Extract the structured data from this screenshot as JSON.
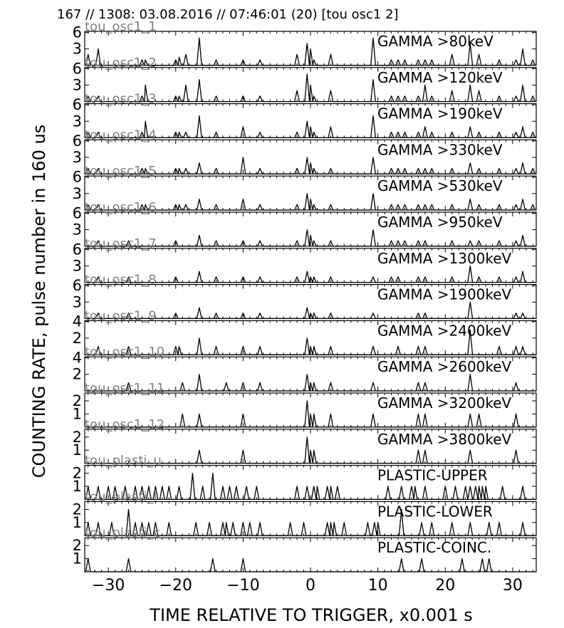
{
  "header": "167 // 1308:   03.08.2016 // 07:46:01 (20)  [tou osc1 2]",
  "chart_data": {
    "type": "line",
    "xlabel": "TIME RELATIVE TO TRIGGER,   x0.001 s",
    "ylabel": "COUNTING RATE,    pulse number in 160 us",
    "xlim": [
      -33.5,
      33.5
    ],
    "xticks": [
      -30,
      -20,
      -10,
      0,
      10,
      20,
      30
    ],
    "xtick_labels": [
      "−30",
      "−20",
      "−10",
      "0",
      "10",
      "20",
      "30"
    ],
    "line_color": "#000000",
    "tag_color": "#808080",
    "panels": [
      {
        "tag": "tou_osc1_1",
        "label": "GAMMA >80keV",
        "ylim": [
          0,
          6.2
        ],
        "yticks": [
          3,
          6
        ],
        "x": [
          -33,
          -31.5,
          -25,
          -24.5,
          -20,
          -19.5,
          -18.5,
          -16.5,
          -14,
          -10,
          -7.5,
          -2,
          -0.5,
          0,
          0.5,
          3,
          9.3,
          12,
          13,
          14,
          16,
          17,
          18,
          21,
          23.7,
          25,
          28,
          30.5,
          31.5,
          33
        ],
        "y": [
          2,
          3,
          1,
          1,
          1,
          1.5,
          2,
          5,
          1,
          1,
          1,
          2,
          4,
          3,
          1,
          2,
          5,
          1,
          1,
          1,
          1,
          1,
          1,
          2,
          4,
          2,
          1,
          1,
          3,
          1
        ]
      },
      {
        "tag": "tou_osc1_2",
        "label": "GAMMA >120keV",
        "ylim": [
          0,
          6.2
        ],
        "yticks": [
          3,
          6
        ],
        "x": [
          -33,
          -31.5,
          -25,
          -24.5,
          -20,
          -19.5,
          -18.5,
          -16.5,
          -14,
          -10,
          -7.5,
          -2,
          -0.5,
          0,
          0.5,
          3,
          9.3,
          12,
          13,
          14,
          16,
          17,
          18,
          21,
          23.7,
          25,
          28,
          30.5,
          31.5,
          33
        ],
        "y": [
          1,
          1,
          1,
          3,
          1,
          1,
          3,
          4,
          1,
          1,
          1,
          2,
          5,
          3,
          1,
          2,
          4,
          1,
          1,
          1,
          1,
          3,
          1,
          2,
          3,
          2,
          1,
          1,
          3,
          1
        ]
      },
      {
        "tag": "tou_osc1_3",
        "label": "GAMMA >190keV",
        "ylim": [
          0,
          6.2
        ],
        "yticks": [
          3,
          6
        ],
        "x": [
          -33,
          -31.5,
          -25,
          -24.5,
          -20,
          -19.5,
          -18.5,
          -16.5,
          -14,
          -10,
          -7.5,
          -2,
          -0.5,
          0,
          0.5,
          3,
          9.3,
          12,
          13,
          14,
          16,
          17,
          18,
          21,
          23.7,
          25,
          28,
          30.5,
          31.5,
          33
        ],
        "y": [
          1,
          1,
          1,
          3,
          1,
          1,
          1,
          4,
          1,
          2,
          1,
          1,
          3,
          2,
          1,
          2,
          4,
          1,
          1,
          1,
          1,
          2,
          1,
          1,
          2,
          1,
          1,
          1,
          2,
          1
        ]
      },
      {
        "tag": "tou_osc1_4",
        "label": "GAMMA >330keV",
        "ylim": [
          0,
          6.2
        ],
        "yticks": [
          3,
          6
        ],
        "x": [
          -33,
          -31.5,
          -25,
          -24.5,
          -20,
          -19.5,
          -18.5,
          -16.5,
          -14,
          -10,
          -7.5,
          -2,
          -0.5,
          0,
          0.5,
          3,
          9.3,
          12,
          13,
          14,
          16,
          17,
          18,
          21,
          23.7,
          25,
          28,
          30.5,
          31.5,
          33
        ],
        "y": [
          1,
          1,
          1,
          1,
          1,
          1,
          1,
          2,
          1,
          3,
          1,
          1,
          3,
          2,
          1,
          1,
          3,
          1,
          1,
          1,
          1,
          1,
          1,
          1,
          2,
          1,
          1,
          1,
          2,
          1
        ]
      },
      {
        "tag": "tou_osc1_5",
        "label": "GAMMA >530keV",
        "ylim": [
          0,
          6.2
        ],
        "yticks": [
          3,
          6
        ],
        "x": [
          -33,
          -31.5,
          -25,
          -24.5,
          -20,
          -19.5,
          -18.5,
          -16.5,
          -14,
          -10,
          -7.5,
          -2,
          -0.5,
          0,
          0.5,
          3,
          9.3,
          12,
          13,
          14,
          16,
          17,
          18,
          21,
          23.7,
          25,
          28,
          30.5,
          31.5,
          33
        ],
        "y": [
          1,
          1,
          1,
          1,
          1,
          1,
          1,
          2,
          1,
          2,
          1,
          1,
          3,
          2,
          1,
          1,
          3,
          1,
          1,
          1,
          1,
          1,
          1,
          1,
          2,
          1,
          1,
          1,
          2,
          1
        ]
      },
      {
        "tag": "tou_osc1_6",
        "label": "GAMMA >950keV",
        "ylim": [
          0,
          6.2
        ],
        "yticks": [
          3,
          6
        ],
        "x": [
          -31.5,
          -27,
          -20,
          -16.5,
          -14,
          -10,
          -7.5,
          -2,
          -0.5,
          0,
          0.5,
          3,
          9.3,
          12,
          13,
          14,
          16,
          17,
          21,
          23.7,
          25,
          28,
          30.5,
          31.5
        ],
        "y": [
          1,
          1,
          1,
          2,
          1,
          1,
          1,
          1,
          3,
          2,
          1,
          1,
          3,
          1,
          1,
          1,
          1,
          1,
          1,
          1,
          1,
          1,
          1,
          2
        ]
      },
      {
        "tag": "tou_osc1_7",
        "label": "GAMMA >1300keV",
        "ylim": [
          0,
          6.2
        ],
        "yticks": [
          3,
          6
        ],
        "x": [
          -31.5,
          -27,
          -20,
          -16.5,
          -14,
          -10,
          -7.5,
          -2,
          -0.5,
          0,
          0.5,
          3,
          9.3,
          12,
          13,
          16,
          17,
          21,
          23.7,
          25,
          28,
          30.5,
          31.5
        ],
        "y": [
          1,
          1,
          1,
          2,
          1,
          1,
          1,
          1,
          2,
          1,
          1,
          1,
          1,
          1,
          1,
          1,
          1,
          1,
          3,
          1,
          1,
          1,
          2
        ]
      },
      {
        "tag": "tou_osc1_8",
        "label": "GAMMA >1900keV",
        "ylim": [
          0,
          6.2
        ],
        "yticks": [
          3,
          6
        ],
        "x": [
          -31.5,
          -27,
          -20,
          -16.5,
          -14,
          -10,
          -7.5,
          -0.5,
          0,
          0.5,
          3,
          9.3,
          16,
          17,
          23.7,
          30.5,
          31.5
        ],
        "y": [
          1,
          1,
          1,
          2,
          1,
          1,
          1,
          2,
          1,
          1,
          1,
          1,
          1,
          1,
          3,
          1,
          1
        ]
      },
      {
        "tag": "tou_osc1_9",
        "label": "GAMMA >2400keV",
        "ylim": [
          0,
          4.1
        ],
        "yticks": [
          2,
          4
        ],
        "x": [
          -31.5,
          -27,
          -20,
          -19.5,
          -16.5,
          -14,
          -10,
          -7.5,
          -0.5,
          0,
          0.5,
          3,
          9.3,
          13,
          16,
          17,
          23.7,
          28,
          30.5,
          31.5
        ],
        "y": [
          1,
          1,
          1,
          1,
          2,
          1,
          1,
          1,
          2,
          1,
          1,
          1,
          1,
          1,
          1,
          1,
          3,
          1,
          1,
          1
        ]
      },
      {
        "tag": "tou_osc1_10",
        "label": "GAMMA >2600keV",
        "ylim": [
          0,
          4.1
        ],
        "yticks": [
          2,
          4
        ],
        "x": [
          -27,
          -19,
          -16.5,
          -12.5,
          -10,
          -7.5,
          -0.5,
          0,
          0.5,
          3,
          9.3,
          16,
          17,
          23.7,
          30.5
        ],
        "y": [
          1,
          1,
          2,
          1,
          1,
          1,
          2,
          1,
          1,
          1,
          1,
          1,
          1,
          2,
          1
        ]
      },
      {
        "tag": "tou_osc1_11",
        "label": "GAMMA >3200keV",
        "ylim": [
          0,
          2.6
        ],
        "yticks": [
          1,
          2
        ],
        "x": [
          -19,
          -16.5,
          -10,
          -0.5,
          0,
          0.5,
          3,
          9.3,
          16,
          17,
          23.7,
          25,
          30.5
        ],
        "y": [
          1,
          1,
          1,
          2,
          1,
          1,
          1,
          1,
          1,
          1,
          1,
          1,
          1
        ]
      },
      {
        "tag": "tou_osc1_12",
        "label": "GAMMA >3800keV",
        "ylim": [
          0,
          2.6
        ],
        "yticks": [
          1,
          2
        ],
        "x": [
          -16.5,
          -10,
          -0.5,
          0,
          0.5,
          16,
          17,
          23.7,
          30.5
        ],
        "y": [
          1,
          1,
          2,
          1,
          1,
          1,
          1,
          1,
          1
        ]
      },
      {
        "tag": "tou_plasti_u",
        "label": "PLASTIC-UPPER",
        "ylim": [
          0,
          2.6
        ],
        "yticks": [
          1,
          2
        ],
        "x": [
          -33,
          -31.5,
          -30,
          -29,
          -27.5,
          -26,
          -25,
          -24,
          -23,
          -22,
          -21,
          -19.5,
          -17.5,
          -16,
          -14.5,
          -13,
          -12,
          -11,
          -9.5,
          -8,
          -2,
          -0.5,
          0.5,
          1,
          2.5,
          3,
          4,
          11.5,
          13.5,
          15,
          15.5,
          17,
          20,
          21.5,
          23,
          23.7,
          24.5,
          25,
          25.5,
          26,
          28.5,
          31.5
        ],
        "y": [
          1,
          1,
          1,
          1,
          1,
          1,
          1,
          1,
          1,
          1,
          1,
          1,
          2,
          1,
          2,
          1,
          1,
          1,
          1,
          1,
          1,
          1,
          1,
          1,
          1,
          1,
          1,
          1,
          1,
          1,
          1,
          1,
          1,
          1,
          1,
          1,
          1,
          1,
          1,
          1,
          1,
          1
        ]
      },
      {
        "tag": "tou_plasti_l",
        "label": "PLASTIC-LOWER",
        "ylim": [
          0,
          2.6
        ],
        "yticks": [
          1,
          2
        ],
        "x": [
          -33,
          -31.5,
          -29.5,
          -27,
          -26,
          -25,
          -24,
          -23,
          -21,
          -17,
          -15,
          -13,
          -12.5,
          -11.5,
          -10,
          -9,
          -7.5,
          -3,
          -1,
          2.5,
          3,
          3.5,
          5,
          8.5,
          9.5,
          10,
          13.5,
          16.5,
          18,
          21,
          23.7,
          26.5,
          28,
          31.5
        ],
        "y": [
          1,
          1,
          1,
          2,
          1,
          1,
          1,
          1,
          1,
          1,
          1,
          1,
          1,
          1,
          1,
          1,
          1,
          1,
          1,
          1,
          1,
          1,
          1,
          1,
          1,
          1,
          2,
          1,
          1,
          1,
          1,
          1,
          1,
          1
        ]
      },
      {
        "tag": "tou_plasti_c",
        "label": "PLASTIC-COINC.",
        "ylim": [
          0,
          2.6
        ],
        "yticks": [
          1,
          2
        ],
        "x": [
          -33,
          -27,
          -14.5,
          -10,
          13.5,
          16.5,
          22.5,
          25.5,
          26.5
        ],
        "y": [
          1,
          1,
          1,
          1,
          1,
          1,
          1,
          1,
          1
        ]
      }
    ]
  }
}
